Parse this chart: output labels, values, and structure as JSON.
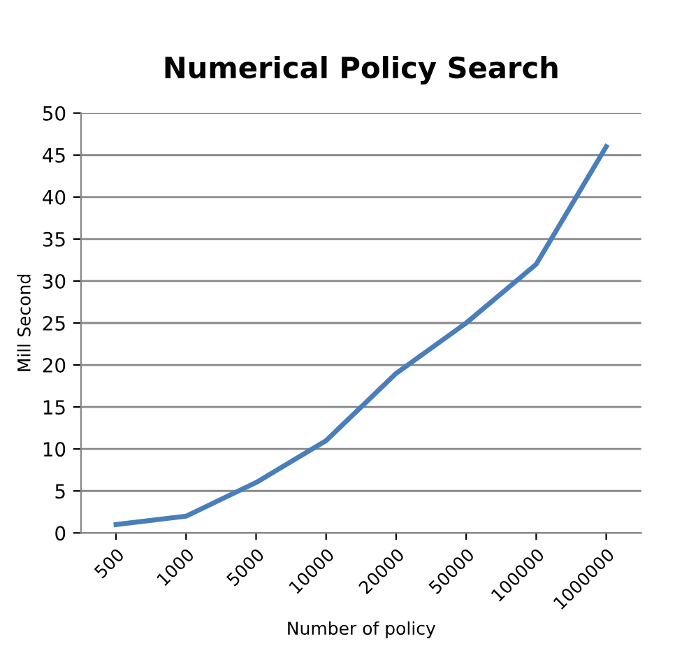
{
  "chart_data": {
    "type": "line",
    "title": "Numerical Policy Search",
    "xlabel": "Number of policy",
    "ylabel": "Mill Second",
    "categories": [
      "500",
      "1000",
      "5000",
      "10000",
      "20000",
      "50000",
      "100000",
      "1000000"
    ],
    "series": [
      {
        "color": "#4a7ebb",
        "values": [
          1,
          2,
          6,
          11,
          19,
          25,
          32,
          46
        ]
      }
    ],
    "ylim": [
      0,
      50
    ],
    "yticks": [
      0,
      5,
      10,
      15,
      20,
      25,
      30,
      35,
      40,
      45,
      50
    ],
    "grid": "y",
    "legend": false,
    "marker": "none",
    "line_style": "solid"
  }
}
